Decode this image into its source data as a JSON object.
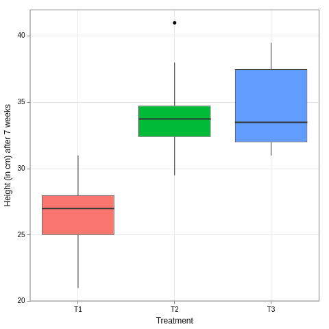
{
  "chart_data": {
    "type": "boxplot",
    "x_label": "Treatment",
    "y_label": "Height (in cm) after 7 weeks",
    "categories": [
      "T1",
      "T2",
      "T3"
    ],
    "boxes": [
      {
        "min": 21,
        "q1": 25,
        "median": 27,
        "q3": 28,
        "max": 31,
        "outliers": []
      },
      {
        "min": 29.5,
        "q1": 32.4,
        "median": 33.75,
        "q3": 34.75,
        "max": 38,
        "outliers": [
          41
        ]
      },
      {
        "min": 31,
        "q1": 32,
        "median": 33.5,
        "q3": 37.5,
        "max": 39.5,
        "outliers": []
      }
    ],
    "colors": [
      "#F8766D",
      "#00BA38",
      "#619CFF"
    ],
    "ylim": [
      20,
      42
    ],
    "yticks": [
      20,
      25,
      30,
      35,
      40
    ],
    "grid": true
  }
}
